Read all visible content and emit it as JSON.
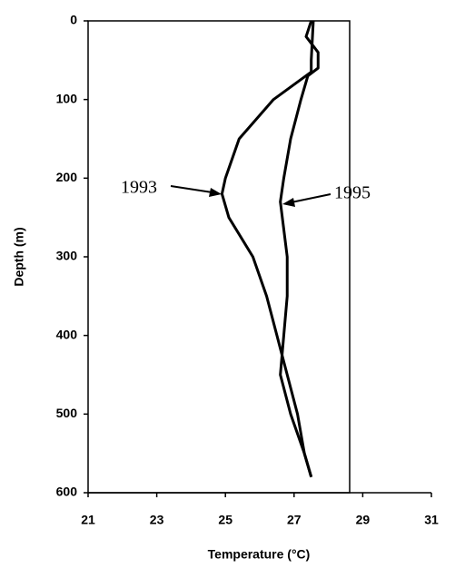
{
  "chart_data": {
    "type": "line",
    "x_label": "Temperature (°C)",
    "y_label": "Depth (m)",
    "xlim": [
      21,
      31
    ],
    "xticks": [
      21,
      23,
      25,
      27,
      29,
      31
    ],
    "ylim": [
      0,
      600
    ],
    "yticks": [
      0,
      100,
      200,
      300,
      400,
      500,
      600
    ],
    "y_inverted": true,
    "series": [
      {
        "name": "1993",
        "color": "#000000",
        "x": [
          27.56,
          27.5,
          27.5,
          26.4,
          25.4,
          25.0,
          24.9,
          25.1,
          25.8,
          26.2,
          26.5,
          26.8,
          27.1,
          27.3,
          27.5
        ],
        "values": [
          0,
          50,
          65,
          100,
          150,
          200,
          220,
          250,
          300,
          350,
          400,
          450,
          500,
          550,
          580
        ]
      },
      {
        "name": "1995",
        "color": "#000000",
        "x": [
          27.5,
          27.35,
          27.7,
          27.7,
          27.4,
          27.2,
          26.9,
          26.7,
          26.6,
          26.8,
          26.8,
          26.7,
          26.6,
          26.9,
          27.3,
          27.5
        ],
        "values": [
          0,
          20,
          40,
          60,
          70,
          100,
          150,
          200,
          230,
          300,
          350,
          400,
          450,
          500,
          550,
          580
        ]
      }
    ]
  }
}
